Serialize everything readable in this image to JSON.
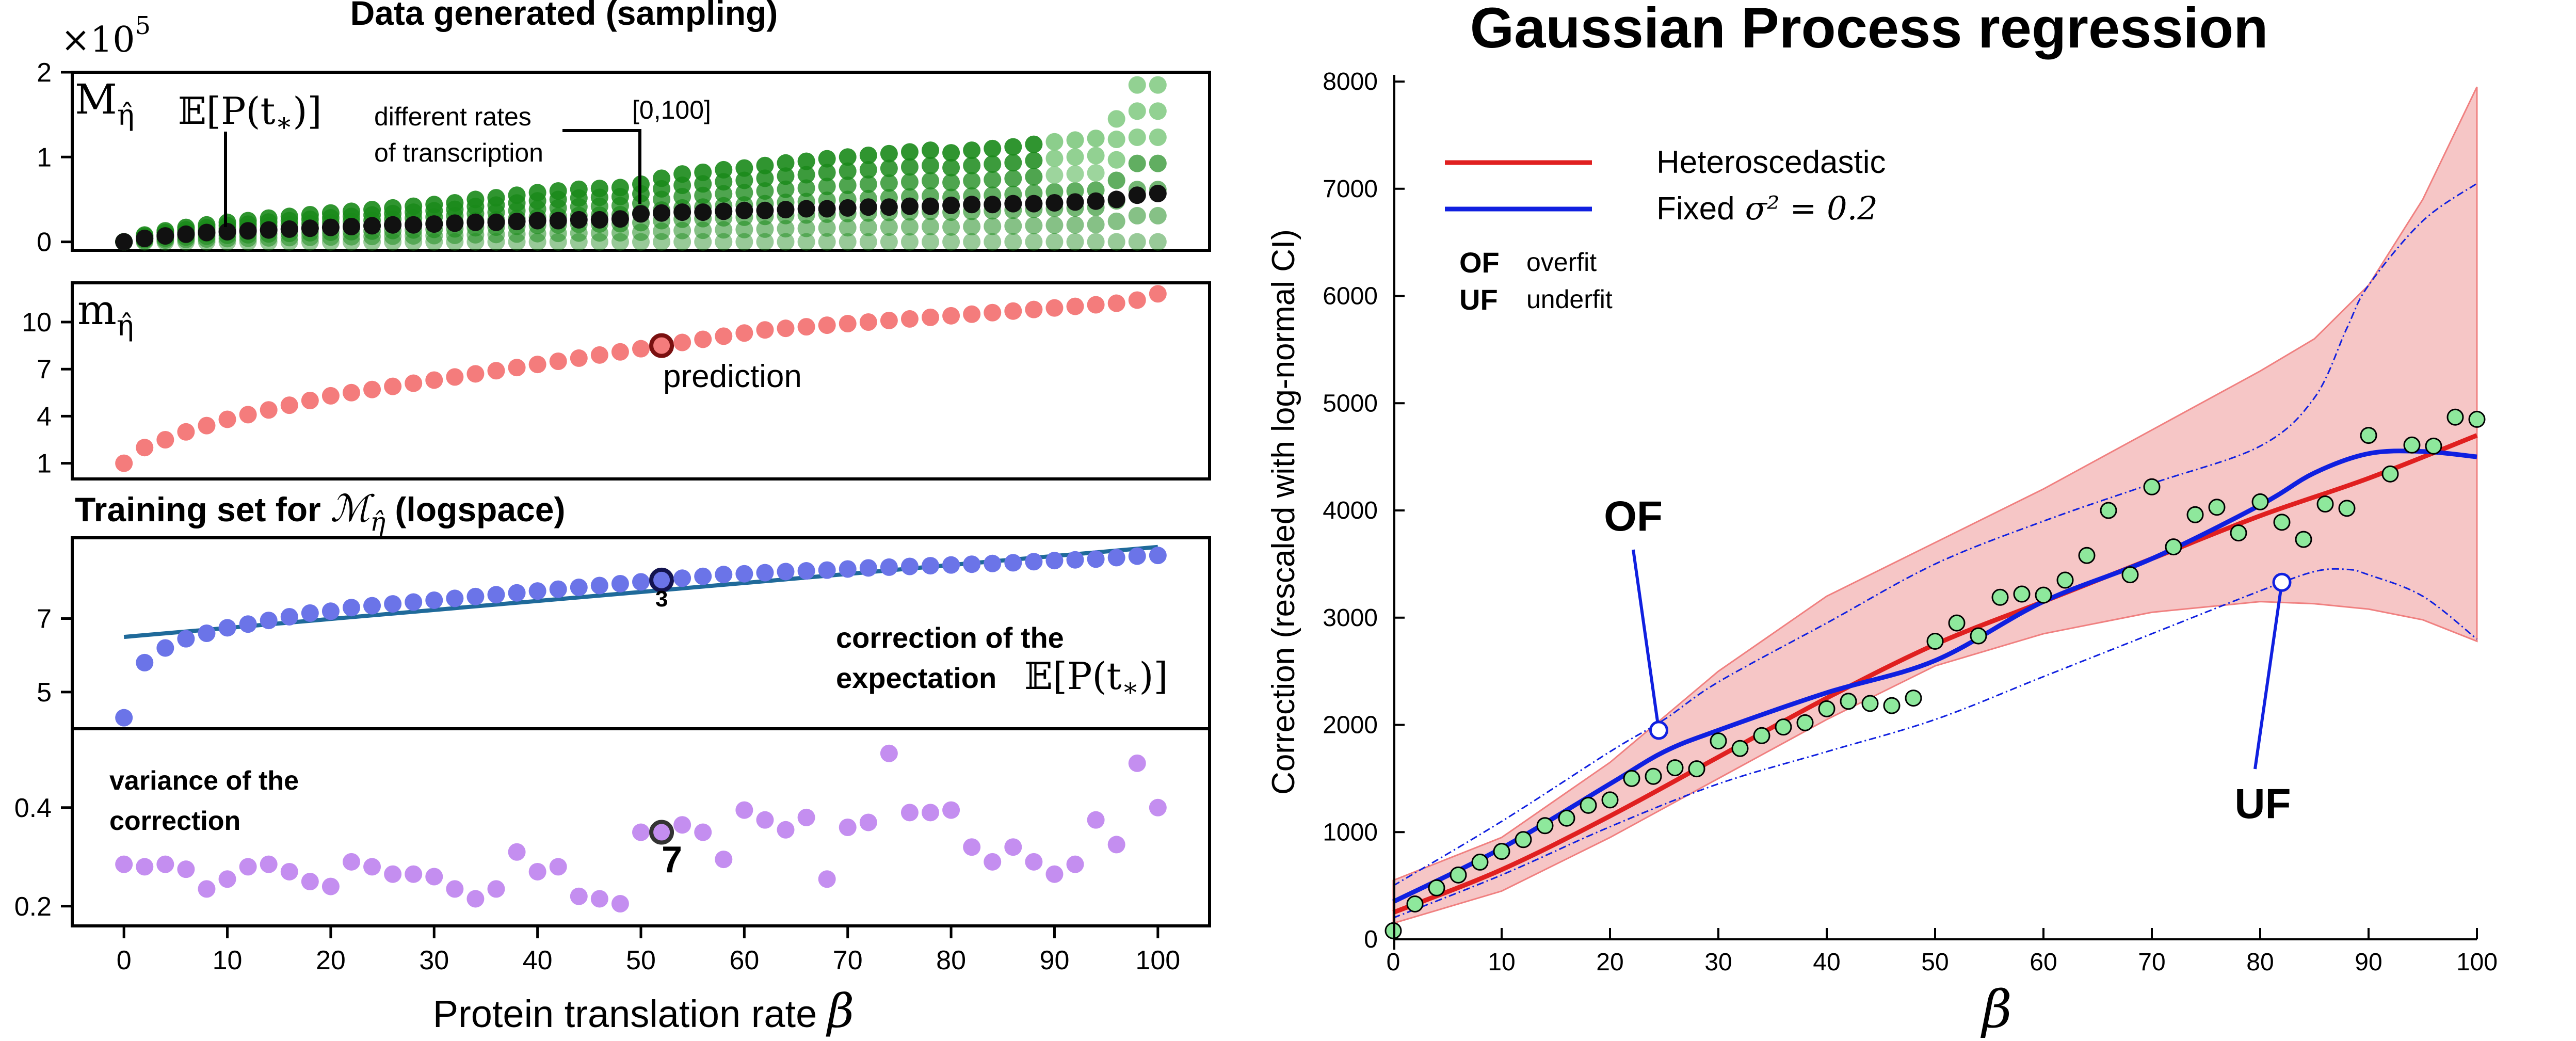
{
  "colors": {
    "green_dark": "#1a8a1a",
    "green_light": "#7fc97f",
    "mean_black": "#111111",
    "red_marker": "#f47c7c",
    "blue_marker": "#6b74e8",
    "blue_line": "#1f6a9a",
    "violet_marker": "#c48ef0",
    "gp_red": "#e02020",
    "gp_blue": "#1020e0",
    "band_fill": "#f6c6c6",
    "obs_fill": "#8ee89c"
  },
  "chart_data": [
    {
      "type": "scatter",
      "panel": "sampling",
      "title": "Data generated (sampling)",
      "scale_label": "×10",
      "scale_exponent": "5",
      "panel_label": "M",
      "panel_label_sub": "η̂",
      "annotation_expect": "𝔼[P(t",
      "annotation_expect_sub": "∗",
      "annotation_expect_end": ")]",
      "annotation_rates_1": "different rates",
      "annotation_rates_2": "of transcription",
      "annotation_range": "[0,100]",
      "x": [
        0,
        2,
        4,
        6,
        8,
        10,
        12,
        14,
        16,
        18,
        20,
        22,
        24,
        26,
        28,
        30,
        32,
        34,
        36,
        38,
        40,
        42,
        44,
        46,
        48,
        50,
        52,
        54,
        56,
        58,
        60,
        62,
        64,
        66,
        68,
        70,
        72,
        74,
        76,
        78,
        80,
        82,
        84,
        86,
        88,
        90,
        92,
        94,
        96,
        98,
        100
      ],
      "mean": [
        0.0,
        0.04,
        0.07,
        0.09,
        0.11,
        0.12,
        0.13,
        0.14,
        0.15,
        0.16,
        0.17,
        0.18,
        0.19,
        0.2,
        0.2,
        0.21,
        0.22,
        0.23,
        0.23,
        0.24,
        0.25,
        0.25,
        0.26,
        0.26,
        0.27,
        0.33,
        0.34,
        0.35,
        0.35,
        0.36,
        0.37,
        0.37,
        0.38,
        0.39,
        0.39,
        0.4,
        0.41,
        0.41,
        0.42,
        0.42,
        0.43,
        0.44,
        0.44,
        0.45,
        0.45,
        0.46,
        0.47,
        0.48,
        0.5,
        0.55,
        0.57
      ],
      "max": [
        0.0,
        0.08,
        0.13,
        0.17,
        0.2,
        0.23,
        0.25,
        0.28,
        0.3,
        0.32,
        0.34,
        0.36,
        0.38,
        0.4,
        0.42,
        0.44,
        0.46,
        0.5,
        0.52,
        0.55,
        0.58,
        0.6,
        0.62,
        0.63,
        0.64,
        0.68,
        0.75,
        0.8,
        0.82,
        0.85,
        0.87,
        0.9,
        0.93,
        0.95,
        0.98,
        1.0,
        1.02,
        1.04,
        1.06,
        1.08,
        1.05,
        1.08,
        1.1,
        1.12,
        1.15,
        1.18,
        1.2,
        1.22,
        1.45,
        1.85,
        1.85
      ],
      "yticks": [
        0,
        1,
        2
      ],
      "ylim": [
        -0.1,
        2.0
      ],
      "xlim": [
        -5,
        105
      ]
    },
    {
      "type": "scatter",
      "panel": "prediction",
      "panel_label": "m",
      "panel_label_sub": "η̂",
      "annotation": "prediction",
      "highlight_index": 26,
      "x": [
        0,
        2,
        4,
        6,
        8,
        10,
        12,
        14,
        16,
        18,
        20,
        22,
        24,
        26,
        28,
        30,
        32,
        34,
        36,
        38,
        40,
        42,
        44,
        46,
        48,
        50,
        52,
        54,
        56,
        58,
        60,
        62,
        64,
        66,
        68,
        70,
        72,
        74,
        76,
        78,
        80,
        82,
        84,
        86,
        88,
        90,
        92,
        94,
        96,
        98,
        100
      ],
      "values": [
        1.0,
        2.0,
        2.5,
        3.0,
        3.4,
        3.8,
        4.1,
        4.4,
        4.7,
        5.0,
        5.3,
        5.5,
        5.7,
        5.9,
        6.1,
        6.3,
        6.5,
        6.7,
        6.9,
        7.1,
        7.3,
        7.5,
        7.7,
        7.9,
        8.1,
        8.3,
        8.5,
        8.7,
        8.9,
        9.1,
        9.3,
        9.5,
        9.6,
        9.7,
        9.8,
        9.9,
        10.0,
        10.1,
        10.2,
        10.3,
        10.4,
        10.5,
        10.6,
        10.7,
        10.8,
        10.9,
        11.0,
        11.1,
        11.2,
        11.4,
        11.8
      ],
      "yticks": [
        1,
        4,
        7,
        10
      ],
      "ylim": [
        0,
        12.5
      ],
      "xlim": [
        -5,
        105
      ]
    },
    {
      "type": "scatter",
      "panel": "training",
      "title": "Training set for ",
      "title_math": "ℳ",
      "title_math_sub": "η̂",
      "title_end": " (logspace)",
      "annotation_point": "3",
      "annotation_1": "correction of the",
      "annotation_2": "expectation",
      "annotation_expect": "𝔼[P(t",
      "annotation_expect_sub": "∗",
      "annotation_expect_end": ")]",
      "highlight_index": 26,
      "fit_line": [
        6.5,
        8.95
      ],
      "x": [
        0,
        2,
        4,
        6,
        8,
        10,
        12,
        14,
        16,
        18,
        20,
        22,
        24,
        26,
        28,
        30,
        32,
        34,
        36,
        38,
        40,
        42,
        44,
        46,
        48,
        50,
        52,
        54,
        56,
        58,
        60,
        62,
        64,
        66,
        68,
        70,
        72,
        74,
        76,
        78,
        80,
        82,
        84,
        86,
        88,
        90,
        92,
        94,
        96,
        98,
        100
      ],
      "values": [
        4.3,
        5.8,
        6.2,
        6.45,
        6.6,
        6.75,
        6.85,
        6.95,
        7.05,
        7.15,
        7.2,
        7.3,
        7.35,
        7.4,
        7.45,
        7.5,
        7.55,
        7.6,
        7.65,
        7.7,
        7.75,
        7.8,
        7.85,
        7.9,
        7.95,
        8.0,
        8.05,
        8.1,
        8.15,
        8.2,
        8.22,
        8.25,
        8.28,
        8.3,
        8.32,
        8.35,
        8.38,
        8.4,
        8.42,
        8.44,
        8.46,
        8.48,
        8.5,
        8.52,
        8.55,
        8.58,
        8.6,
        8.62,
        8.66,
        8.7,
        8.72
      ],
      "yticks": [
        5,
        7
      ],
      "ylim": [
        4.0,
        9.2
      ],
      "xlim": [
        -5,
        105
      ]
    },
    {
      "type": "scatter",
      "panel": "variance",
      "annotation_1": "variance of the",
      "annotation_2": "correction",
      "annotation_point": "7",
      "highlight_index": 26,
      "x": [
        0,
        2,
        4,
        6,
        8,
        10,
        12,
        14,
        16,
        18,
        20,
        22,
        24,
        26,
        28,
        30,
        32,
        34,
        36,
        38,
        40,
        42,
        44,
        46,
        48,
        50,
        52,
        54,
        56,
        58,
        60,
        62,
        64,
        66,
        68,
        70,
        72,
        74,
        76,
        78,
        80,
        82,
        84,
        86,
        88,
        90,
        92,
        94,
        96,
        98,
        100
      ],
      "values": [
        0.285,
        0.28,
        0.285,
        0.275,
        0.235,
        0.255,
        0.28,
        0.285,
        0.27,
        0.25,
        0.24,
        0.29,
        0.28,
        0.265,
        0.265,
        0.26,
        0.235,
        0.215,
        0.235,
        0.31,
        0.27,
        0.28,
        0.22,
        0.215,
        0.205,
        0.35,
        0.35,
        0.365,
        0.35,
        0.295,
        0.395,
        0.375,
        0.355,
        0.38,
        0.255,
        0.36,
        0.37,
        0.51,
        0.39,
        0.39,
        0.395,
        0.32,
        0.29,
        0.32,
        0.29,
        0.265,
        0.285,
        0.375,
        0.325,
        0.49,
        0.4
      ],
      "yticks": [
        0.2,
        0.4
      ],
      "ylim": [
        0.16,
        0.56
      ],
      "xlim": [
        -5,
        105
      ],
      "xticks": [
        0,
        10,
        20,
        30,
        40,
        50,
        60,
        70,
        80,
        90,
        100
      ],
      "xlabel": "Protein translation rate",
      "xlabel_symbol": "β"
    },
    {
      "type": "line",
      "panel": "gp",
      "title": "Gaussian Process regression",
      "ylabel": "Correction (rescaled with log-normal CI)",
      "xlabel": "β",
      "xlim": [
        0,
        100
      ],
      "ylim": [
        0,
        8000
      ],
      "xticks": [
        0,
        10,
        20,
        30,
        40,
        50,
        60,
        70,
        80,
        90,
        100
      ],
      "yticks": [
        0,
        1000,
        2000,
        3000,
        4000,
        5000,
        6000,
        7000,
        8000
      ],
      "legend": [
        {
          "label": "Heteroscedastic",
          "color": "#e02020"
        },
        {
          "label": "Fixed",
          "math": "σ² = 0.2",
          "color": "#1020e0"
        }
      ],
      "key": [
        {
          "code": "OF",
          "text": "overfit"
        },
        {
          "code": "UF",
          "text": "underfit"
        }
      ],
      "markers": [
        {
          "label": "OF",
          "x": 24.5,
          "y": 1950
        },
        {
          "label": "UF",
          "x": 82,
          "y": 3330
        }
      ],
      "band_x": [
        0,
        10,
        20,
        30,
        40,
        50,
        60,
        70,
        80,
        85,
        90,
        95,
        100
      ],
      "band_upper": [
        550,
        950,
        1650,
        2500,
        3200,
        3700,
        4200,
        4750,
        5300,
        5600,
        6100,
        6900,
        7950
      ],
      "band_lower": [
        150,
        450,
        950,
        1500,
        2050,
        2550,
        2850,
        3050,
        3150,
        3130,
        3080,
        2980,
        2780
      ],
      "hetero_x": [
        0,
        10,
        20,
        30,
        40,
        50,
        60,
        70,
        80,
        90,
        100
      ],
      "hetero_y": [
        250,
        650,
        1150,
        1700,
        2250,
        2750,
        3150,
        3550,
        3950,
        4300,
        4700
      ],
      "fixed_x": [
        0,
        10,
        20,
        25,
        30,
        40,
        50,
        60,
        70,
        80,
        85,
        90,
        95,
        100
      ],
      "fixed_y": [
        350,
        850,
        1450,
        1750,
        1950,
        2300,
        2600,
        3150,
        3550,
        4050,
        4350,
        4530,
        4550,
        4500
      ],
      "fixed_upper_x": [
        0,
        10,
        20,
        25,
        30,
        40,
        50,
        60,
        70,
        80,
        85,
        88,
        90,
        95,
        100
      ],
      "fixed_upper_y": [
        500,
        1100,
        1750,
        2050,
        2400,
        2950,
        3500,
        3900,
        4250,
        4600,
        5050,
        5700,
        6100,
        6700,
        7050
      ],
      "fixed_lower_x": [
        0,
        10,
        20,
        30,
        40,
        50,
        60,
        70,
        80,
        85,
        88,
        90,
        95,
        100
      ],
      "fixed_lower_y": [
        200,
        600,
        1050,
        1450,
        1750,
        2050,
        2450,
        2850,
        3250,
        3430,
        3450,
        3400,
        3200,
        2800
      ],
      "observations_x": [
        0,
        2,
        4,
        6,
        8,
        10,
        12,
        14,
        16,
        18,
        20,
        22,
        24,
        26,
        28,
        30,
        32,
        34,
        36,
        38,
        40,
        42,
        44,
        46,
        48,
        50,
        52,
        54,
        56,
        58,
        60,
        62,
        64,
        66,
        68,
        70,
        72,
        74,
        76,
        78,
        80,
        82,
        84,
        86,
        88,
        90,
        92,
        94,
        96,
        98,
        100
      ],
      "observations_y": [
        80,
        330,
        480,
        600,
        720,
        820,
        930,
        1060,
        1130,
        1250,
        1300,
        1500,
        1520,
        1600,
        1590,
        1850,
        1780,
        1900,
        1980,
        2020,
        2150,
        2220,
        2200,
        2180,
        2250,
        2780,
        2950,
        2830,
        3190,
        3220,
        3210,
        3350,
        3580,
        4000,
        3400,
        4220,
        3660,
        3960,
        4030,
        3790,
        4080,
        3890,
        3730,
        4060,
        4020,
        4700,
        4340,
        4610,
        4600,
        4870,
        4850
      ]
    }
  ]
}
